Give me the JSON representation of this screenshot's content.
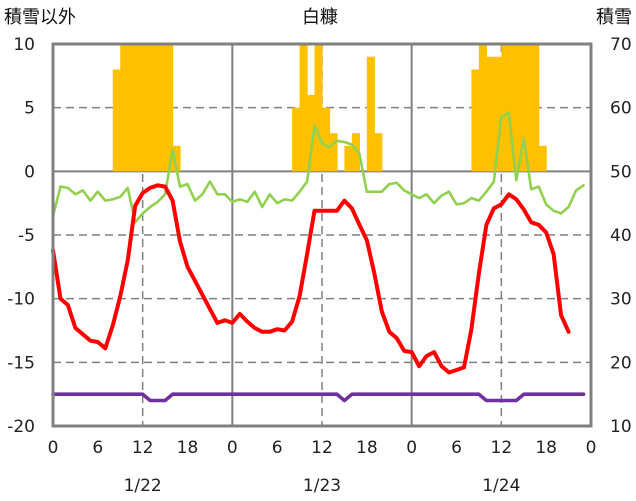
{
  "chart_data": {
    "type": "bar+line",
    "title": "白糠",
    "left_axis_label": "積雪以外",
    "right_axis_label": "積雪",
    "left_ylim": [
      -20,
      10
    ],
    "left_yticks": [
      "10",
      "5",
      "0",
      "-5",
      "-10",
      "-15",
      "-20"
    ],
    "right_ylim": [
      10,
      70
    ],
    "right_yticks": [
      "70",
      "60",
      "50",
      "40",
      "30",
      "20",
      "10"
    ],
    "x_hours_range": [
      0,
      72
    ],
    "x_tick_labels": [
      "0",
      "6",
      "12",
      "18",
      "0",
      "6",
      "12",
      "18",
      "0",
      "6",
      "12",
      "18",
      "0"
    ],
    "date_labels": [
      "1/22",
      "1/23",
      "1/24"
    ],
    "colors": {
      "snowfall_bars": "#FFC000",
      "temperature": "#FF0000",
      "wind": "#92D050",
      "snow_depth": "#7030A0",
      "grid": "#808080"
    },
    "series": [
      {
        "key": "snowfall",
        "axis": "left",
        "style": "bar",
        "points": [
          [
            8,
            8
          ],
          [
            9,
            10
          ],
          [
            10,
            10
          ],
          [
            11,
            10
          ],
          [
            12,
            10
          ],
          [
            13,
            10
          ],
          [
            14,
            10
          ],
          [
            15,
            10
          ],
          [
            16,
            2
          ],
          [
            32,
            5
          ],
          [
            33,
            10
          ],
          [
            34,
            6
          ],
          [
            35,
            10
          ],
          [
            36,
            5
          ],
          [
            37,
            3
          ],
          [
            39,
            2
          ],
          [
            40,
            3
          ],
          [
            42,
            9
          ],
          [
            43,
            3
          ],
          [
            56,
            8
          ],
          [
            57,
            10
          ],
          [
            58,
            9
          ],
          [
            59,
            9
          ],
          [
            60,
            10
          ],
          [
            61,
            10
          ],
          [
            62,
            10
          ],
          [
            63,
            10
          ],
          [
            64,
            10
          ],
          [
            65,
            2
          ]
        ]
      },
      {
        "key": "temperature",
        "axis": "left",
        "style": "line",
        "points": [
          [
            0,
            -6.2
          ],
          [
            1,
            -10
          ],
          [
            2,
            -10.5
          ],
          [
            3,
            -12.3
          ],
          [
            4,
            -12.8
          ],
          [
            5,
            -13.3
          ],
          [
            6,
            -13.4
          ],
          [
            7,
            -13.9
          ],
          [
            8,
            -12.1
          ],
          [
            9,
            -9.8
          ],
          [
            10,
            -7
          ],
          [
            11,
            -2.7
          ],
          [
            12,
            -1.7
          ],
          [
            13,
            -1.3
          ],
          [
            14,
            -1.1
          ],
          [
            15,
            -1.2
          ],
          [
            16,
            -2.3
          ],
          [
            17,
            -5.5
          ],
          [
            18,
            -7.5
          ],
          [
            19,
            -8.6
          ],
          [
            20,
            -9.7
          ],
          [
            21,
            -10.8
          ],
          [
            22,
            -11.9
          ],
          [
            23,
            -11.7
          ],
          [
            24,
            -11.9
          ],
          [
            25,
            -11.2
          ],
          [
            26,
            -11.8
          ],
          [
            27,
            -12.3
          ],
          [
            28,
            -12.6
          ],
          [
            29,
            -12.6
          ],
          [
            30,
            -12.4
          ],
          [
            31,
            -12.5
          ],
          [
            32,
            -11.8
          ],
          [
            33,
            -9.8
          ],
          [
            34,
            -6.5
          ],
          [
            35,
            -3.1
          ],
          [
            36,
            -3.1
          ],
          [
            37,
            -3.1
          ],
          [
            38,
            -3.1
          ],
          [
            39,
            -2.3
          ],
          [
            40,
            -2.9
          ],
          [
            41,
            -4.2
          ],
          [
            42,
            -5.4
          ],
          [
            43,
            -8
          ],
          [
            44,
            -11
          ],
          [
            45,
            -12.6
          ],
          [
            46,
            -13.1
          ],
          [
            47,
            -14.1
          ],
          [
            48,
            -14.2
          ],
          [
            49,
            -15.3
          ],
          [
            50,
            -14.5
          ],
          [
            51,
            -14.2
          ],
          [
            52,
            -15.3
          ],
          [
            53,
            -15.8
          ],
          [
            54,
            -15.6
          ],
          [
            55,
            -15.4
          ],
          [
            56,
            -12.4
          ],
          [
            57,
            -8
          ],
          [
            58,
            -4.2
          ],
          [
            59,
            -2.9
          ],
          [
            60,
            -2.6
          ],
          [
            61,
            -1.8
          ],
          [
            62,
            -2.2
          ],
          [
            63,
            -3
          ],
          [
            64,
            -4
          ],
          [
            65,
            -4.2
          ],
          [
            66,
            -4.8
          ],
          [
            67,
            -6.5
          ],
          [
            68,
            -11.3
          ],
          [
            69,
            -12.6
          ]
        ]
      },
      {
        "key": "wind",
        "axis": "left",
        "style": "line",
        "points": [
          [
            0,
            -3.5
          ],
          [
            1,
            -1.2
          ],
          [
            2,
            -1.3
          ],
          [
            3,
            -1.8
          ],
          [
            4,
            -1.5
          ],
          [
            5,
            -2.3
          ],
          [
            6,
            -1.6
          ],
          [
            7,
            -2.3
          ],
          [
            8,
            -2.2
          ],
          [
            9,
            -2
          ],
          [
            10,
            -1.3
          ],
          [
            11,
            -4
          ],
          [
            12,
            -3.3
          ],
          [
            13,
            -2.8
          ],
          [
            14,
            -2.4
          ],
          [
            15,
            -1.8
          ],
          [
            16,
            1.7
          ],
          [
            17,
            -1.2
          ],
          [
            18,
            -1
          ],
          [
            19,
            -2.3
          ],
          [
            20,
            -1.8
          ],
          [
            21,
            -0.8
          ],
          [
            22,
            -1.8
          ],
          [
            23,
            -1.8
          ],
          [
            24,
            -2.4
          ],
          [
            25,
            -2.2
          ],
          [
            26,
            -2.4
          ],
          [
            27,
            -1.6
          ],
          [
            28,
            -2.8
          ],
          [
            29,
            -1.8
          ],
          [
            30,
            -2.5
          ],
          [
            31,
            -2.2
          ],
          [
            32,
            -2.3
          ],
          [
            33,
            -1.6
          ],
          [
            34,
            -0.8
          ],
          [
            35,
            3.6
          ],
          [
            36,
            2.2
          ],
          [
            37,
            1.9
          ],
          [
            38,
            2.4
          ],
          [
            39,
            2.3
          ],
          [
            40,
            2.1
          ],
          [
            41,
            1.4
          ],
          [
            42,
            -1.6
          ],
          [
            43,
            -1.6
          ],
          [
            44,
            -1.6
          ],
          [
            45,
            -1
          ],
          [
            46,
            -0.9
          ],
          [
            47,
            -1.5
          ],
          [
            48,
            -1.8
          ],
          [
            49,
            -2.1
          ],
          [
            50,
            -1.8
          ],
          [
            51,
            -2.5
          ],
          [
            52,
            -1.9
          ],
          [
            53,
            -1.6
          ],
          [
            54,
            -2.6
          ],
          [
            55,
            -2.5
          ],
          [
            56,
            -2.1
          ],
          [
            57,
            -2.3
          ],
          [
            58,
            -1.6
          ],
          [
            59,
            -0.8
          ],
          [
            60,
            4.3
          ],
          [
            61,
            4.6
          ],
          [
            62,
            -0.7
          ],
          [
            63,
            2.6
          ],
          [
            64,
            -1.4
          ],
          [
            65,
            -1.2
          ],
          [
            66,
            -2.6
          ],
          [
            67,
            -3.1
          ],
          [
            68,
            -3.3
          ],
          [
            69,
            -2.8
          ],
          [
            70,
            -1.5
          ],
          [
            71,
            -1.1
          ]
        ]
      },
      {
        "key": "snow_depth",
        "axis": "left",
        "style": "line",
        "points": [
          [
            0,
            -17.5
          ],
          [
            12,
            -17.5
          ],
          [
            13,
            -18
          ],
          [
            15,
            -18
          ],
          [
            16,
            -17.5
          ],
          [
            38,
            -17.5
          ],
          [
            39,
            -18
          ],
          [
            40,
            -17.5
          ],
          [
            57,
            -17.5
          ],
          [
            58,
            -18
          ],
          [
            62,
            -18
          ],
          [
            63,
            -17.5
          ],
          [
            71,
            -17.5
          ]
        ]
      }
    ]
  }
}
